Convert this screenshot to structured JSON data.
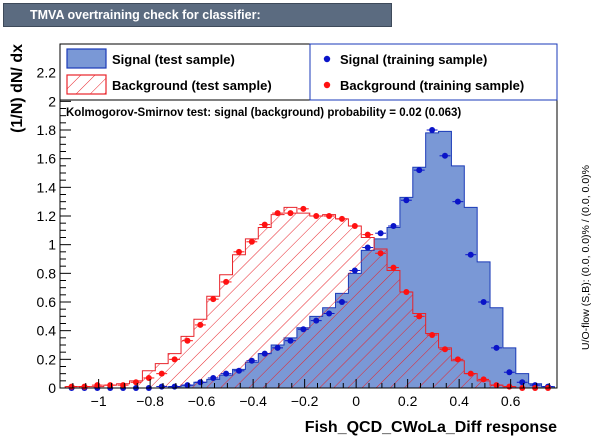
{
  "window_title": "TMVA overtraining check for classifier: Fish_QCD_CWoLa_Diff",
  "chart_data": {
    "type": "histogram",
    "xlabel": "Fish_QCD_CWoLa_Diff response",
    "ylabel": "(1/N) dN/ dx",
    "right_label": "U/O-flow (S,B): (0.0, 0.0)% / (0.0, 0.0)%",
    "ks_text": "Kolmogorov-Smirnov test: signal (background) probability =  0.02 (0.063)",
    "xlim": [
      -1.15,
      0.78
    ],
    "ylim": [
      0,
      2.4
    ],
    "x_ticks": [
      -1,
      -0.8,
      -0.6,
      -0.4,
      -0.2,
      0,
      0.2,
      0.4,
      0.6
    ],
    "x_tick_labels": [
      "−1",
      "−0.8",
      "−0.6",
      "−0.4",
      "−0.2",
      "0",
      "0.2",
      "0.4",
      "0.6"
    ],
    "y_ticks": [
      0,
      0.2,
      0.4,
      0.6,
      0.8,
      1,
      1.2,
      1.4,
      1.6,
      1.8,
      2,
      2.2
    ],
    "y_tick_labels": [
      "0",
      "0.2",
      "0.4",
      "0.6",
      "0.8",
      "1",
      "1.2",
      "1.4",
      "1.6",
      "1.8",
      "2",
      "2.2"
    ],
    "legend": {
      "signal_test": "Signal (test sample)",
      "background_test": "Background (test sample)",
      "signal_train": "Signal (training sample)",
      "background_train": "Background (training sample)"
    },
    "bin_edges": [
      -1.13,
      -1.08,
      -1.03,
      -0.98,
      -0.93,
      -0.88,
      -0.83,
      -0.78,
      -0.73,
      -0.68,
      -0.63,
      -0.58,
      -0.53,
      -0.48,
      -0.43,
      -0.38,
      -0.33,
      -0.28,
      -0.23,
      -0.18,
      -0.13,
      -0.08,
      -0.03,
      0.02,
      0.07,
      0.12,
      0.17,
      0.22,
      0.27,
      0.32,
      0.37,
      0.42,
      0.47,
      0.52,
      0.57,
      0.62,
      0.67,
      0.72,
      0.77
    ],
    "series": [
      {
        "name": "Signal (test sample)",
        "style": "filled-histogram",
        "values": [
          0,
          0,
          0,
          0,
          0,
          0,
          0,
          0,
          0.01,
          0.02,
          0.04,
          0.06,
          0.09,
          0.13,
          0.18,
          0.24,
          0.3,
          0.35,
          0.42,
          0.5,
          0.56,
          0.66,
          0.8,
          0.96,
          1.04,
          1.12,
          1.33,
          1.54,
          1.78,
          1.79,
          1.55,
          1.26,
          0.88,
          0.56,
          0.28,
          0.1,
          0.03,
          0.01
        ]
      },
      {
        "name": "Background (test sample)",
        "style": "hatched-histogram",
        "values": [
          0.01,
          0.01,
          0.01,
          0.02,
          0.03,
          0.05,
          0.12,
          0.17,
          0.24,
          0.36,
          0.48,
          0.64,
          0.79,
          0.93,
          1.04,
          1.12,
          1.21,
          1.26,
          1.22,
          1.2,
          1.21,
          1.18,
          1.13,
          1.05,
          0.97,
          0.82,
          0.67,
          0.52,
          0.38,
          0.28,
          0.19,
          0.1,
          0.05,
          0.02,
          0.01,
          0,
          0,
          0
        ]
      },
      {
        "name": "Signal (training sample)",
        "style": "markers",
        "values": [
          0,
          0,
          0,
          0,
          0,
          0,
          0,
          0.01,
          0.01,
          0.02,
          0.04,
          0.07,
          0.1,
          0.12,
          0.19,
          0.24,
          0.28,
          0.33,
          0.41,
          0.47,
          0.52,
          0.6,
          0.82,
          0.98,
          1.08,
          1.13,
          1.31,
          1.52,
          1.8,
          1.62,
          1.3,
          0.93,
          0.6,
          0.28,
          0.11,
          0.04,
          0.02,
          0.01
        ]
      },
      {
        "name": "Background (training sample)",
        "style": "markers",
        "values": [
          0.01,
          0.01,
          0.02,
          0.02,
          0.02,
          0.04,
          0.07,
          0.1,
          0.2,
          0.33,
          0.44,
          0.62,
          0.74,
          0.95,
          1.02,
          1.14,
          1.22,
          1.22,
          1.25,
          1.2,
          1.2,
          1.18,
          1.13,
          1.07,
          0.94,
          0.84,
          0.67,
          0.5,
          0.37,
          0.27,
          0.2,
          0.1,
          0.06,
          0.02,
          0.01,
          0,
          0,
          0
        ]
      }
    ],
    "colors": {
      "signal_fill": "#7a98d6",
      "signal_line": "#1a3ab8",
      "signal_marker": "#0a14c8",
      "background_line": "#e8232a",
      "background_marker": "#ff1111"
    }
  }
}
